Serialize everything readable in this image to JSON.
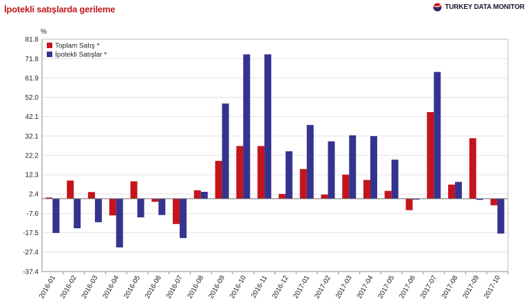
{
  "header": {
    "title": "İpotekli satışlarda gerileme",
    "brand": "TURKEY DATA MONITOR"
  },
  "colors": {
    "series1": "#c4151c",
    "series2": "#34348f",
    "grid": "#e2e2e2",
    "axis": "#555555"
  },
  "chart_data": {
    "type": "bar",
    "title": "İpotekli satışlarda gerileme",
    "ylabel": "%",
    "xlabel": "",
    "ylim": [
      -37.4,
      81.8
    ],
    "yticks": [
      "81.8",
      "71.8",
      "61.9",
      "52.0",
      "42.1",
      "32.1",
      "22.2",
      "12.3",
      "2.4",
      "-7.6",
      "-17.5",
      "-27.4",
      "-37.4"
    ],
    "legend_position": "top-left",
    "categories": [
      "2016-01",
      "2016-02",
      "2016-03",
      "2016-04",
      "2016-05",
      "2016-06",
      "2016-07",
      "2016-08",
      "2016-09",
      "2016-10",
      "2016-11",
      "2016-12",
      "2017-01",
      "2017-02",
      "2017-03",
      "2017-04",
      "2017-05",
      "2017-06",
      "2017-07",
      "2017-08",
      "2017-09",
      "2017-10"
    ],
    "series": [
      {
        "name": "Toplam Satış *",
        "values": [
          0.6,
          9.3,
          3.4,
          -8.6,
          8.9,
          -1.6,
          -13.0,
          4.3,
          19.4,
          27.0,
          27.0,
          2.4,
          15.2,
          2.1,
          12.3,
          9.6,
          4.0,
          -5.9,
          44.4,
          7.2,
          31.0,
          -3.4
        ]
      },
      {
        "name": "İpotekli Satışlar *",
        "values": [
          -17.6,
          -15.2,
          -12.1,
          -25.0,
          -9.6,
          -8.4,
          -20.2,
          3.5,
          48.8,
          74.0,
          74.0,
          24.3,
          37.8,
          29.4,
          32.5,
          32.1,
          20.0,
          -0.5,
          65.0,
          8.6,
          -0.6,
          -17.9
        ]
      }
    ]
  }
}
